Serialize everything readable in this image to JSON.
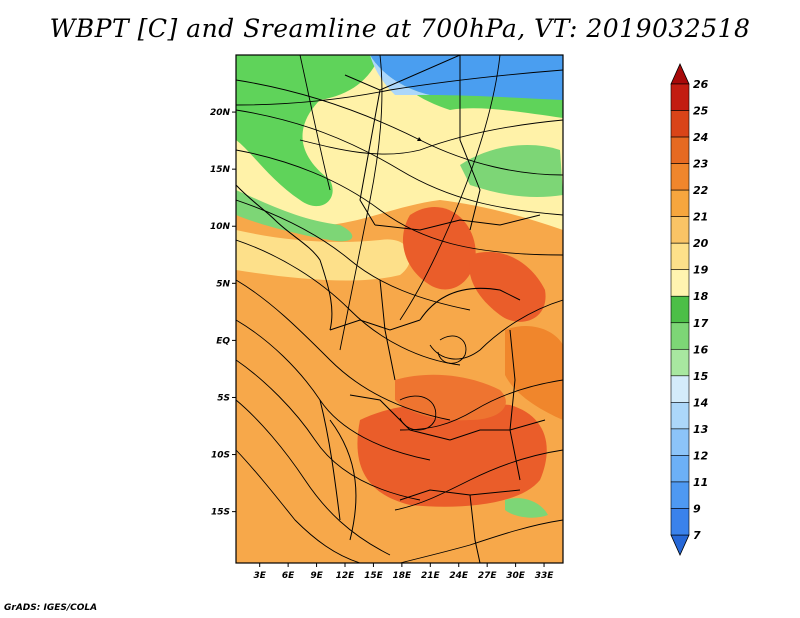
{
  "title": "WBPT [C] and Sreamline at 700hPa, VT: 2019032518",
  "credit": "GrADS: IGES/COLA",
  "map": {
    "lon_labels": [
      "3E",
      "6E",
      "9E",
      "12E",
      "15E",
      "18E",
      "21E",
      "24E",
      "27E",
      "30E",
      "33E"
    ],
    "lat_labels": [
      "20N",
      "15N",
      "10N",
      "5N",
      "EQ",
      "5S",
      "10S",
      "15S"
    ],
    "lon_values": [
      3,
      6,
      9,
      12,
      15,
      18,
      21,
      24,
      27,
      30,
      33
    ],
    "lat_values": [
      20,
      15,
      10,
      5,
      0,
      -5,
      -10,
      -15
    ],
    "lon_range": [
      0.5,
      35
    ],
    "lat_range": [
      -19.5,
      25
    ],
    "regions": [
      {
        "name": "cool-north-east",
        "value": 13,
        "color": "#4a9ef0"
      },
      {
        "name": "green-belt",
        "value": 17,
        "color": "#5fd35a"
      },
      {
        "name": "sahel-cream",
        "value": 19,
        "color": "#fff2a8"
      },
      {
        "name": "basin-orange",
        "value": 21,
        "color": "#f7a84a"
      },
      {
        "name": "hot-core-north",
        "value": 23,
        "color": "#ea5d2a"
      },
      {
        "name": "hot-core-south",
        "value": 23,
        "color": "#ea5d2a"
      }
    ]
  },
  "colorbar": {
    "labels": [
      "7",
      "9",
      "11",
      "12",
      "13",
      "14",
      "15",
      "16",
      "17",
      "18",
      "19",
      "20",
      "21",
      "22",
      "23",
      "24",
      "25",
      "26"
    ],
    "colors": [
      "#2668d8",
      "#3a82ec",
      "#4e99f2",
      "#6cb0f6",
      "#8cc4f8",
      "#acd7fa",
      "#d4ecfb",
      "#a8e8a0",
      "#7dd676",
      "#4cbf47",
      "#fff4b0",
      "#fde08a",
      "#f9c466",
      "#f6a63e",
      "#f0862c",
      "#e66a22",
      "#d94418",
      "#c21d12",
      "#a80a0a"
    ]
  }
}
